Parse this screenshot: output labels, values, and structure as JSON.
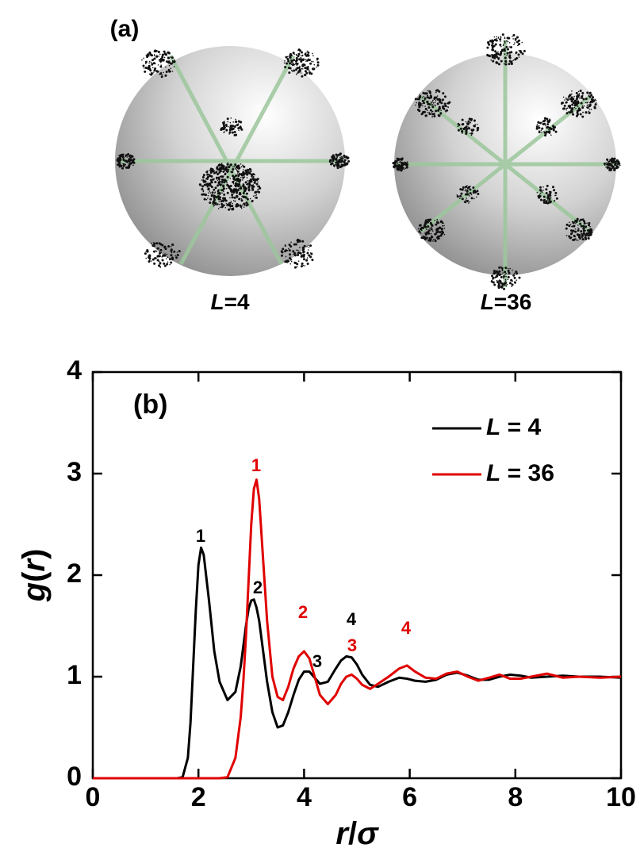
{
  "panel_a": {
    "label": "(a)",
    "captions": [
      "L=4",
      "L=36"
    ]
  },
  "chart_data": {
    "type": "line",
    "panel_label": "(b)",
    "x_label": "r/σ",
    "y_label": "g(r)",
    "x": [
      0,
      1,
      1.6,
      1.7,
      1.8,
      1.85,
      1.9,
      1.95,
      2.0,
      2.05,
      2.1,
      2.2,
      2.3,
      2.4,
      2.55,
      2.7,
      2.8,
      2.85,
      2.9,
      2.95,
      3.0,
      3.05,
      3.1,
      3.15,
      3.2,
      3.3,
      3.4,
      3.5,
      3.6,
      3.7,
      3.8,
      3.9,
      4.0,
      4.1,
      4.2,
      4.3,
      4.45,
      4.6,
      4.7,
      4.8,
      4.9,
      5.0,
      5.1,
      5.25,
      5.4,
      5.6,
      5.8,
      5.95,
      6.1,
      6.3,
      6.5,
      6.7,
      6.9,
      7.1,
      7.3,
      7.5,
      7.7,
      7.9,
      8.1,
      8.3,
      8.6,
      8.9,
      9.2,
      9.6,
      10
    ],
    "series": [
      {
        "name": "L = 4",
        "color": "#000000",
        "values": [
          0,
          0,
          0,
          0.01,
          0.2,
          0.55,
          1.1,
          1.65,
          2.1,
          2.27,
          2.2,
          1.75,
          1.25,
          0.95,
          0.77,
          0.85,
          1.1,
          1.3,
          1.5,
          1.67,
          1.75,
          1.76,
          1.68,
          1.55,
          1.35,
          0.95,
          0.65,
          0.5,
          0.52,
          0.65,
          0.82,
          0.97,
          1.05,
          1.05,
          0.99,
          0.93,
          0.95,
          1.08,
          1.16,
          1.2,
          1.19,
          1.12,
          1.02,
          0.92,
          0.9,
          0.95,
          0.99,
          0.98,
          0.96,
          0.95,
          0.97,
          1.02,
          1.04,
          1.01,
          0.97,
          0.97,
          1.0,
          1.02,
          1.01,
          0.99,
          1.0,
          1.01,
          1.0,
          1.0,
          0.99
        ]
      },
      {
        "name": "L = 36",
        "color": "#e00000",
        "values": [
          0,
          0,
          0,
          0,
          0,
          0,
          0,
          0,
          0,
          0,
          0,
          0,
          0,
          0,
          0.01,
          0.2,
          0.6,
          0.95,
          1.4,
          1.95,
          2.5,
          2.85,
          2.94,
          2.75,
          2.35,
          1.55,
          1.0,
          0.8,
          0.77,
          0.9,
          1.08,
          1.2,
          1.25,
          1.18,
          1.0,
          0.82,
          0.73,
          0.82,
          0.93,
          1.0,
          1.02,
          0.98,
          0.92,
          0.88,
          0.93,
          1.0,
          1.08,
          1.11,
          1.05,
          0.99,
          0.98,
          1.03,
          1.05,
          1.0,
          0.96,
          0.99,
          1.02,
          0.98,
          0.98,
          1.0,
          1.03,
          0.99,
          1.0,
          0.99,
          1.0
        ]
      }
    ],
    "annotations": [
      {
        "text": "1",
        "color": "#000000"
      },
      {
        "text": "2",
        "color": "#000000"
      },
      {
        "text": "3",
        "color": "#000000"
      },
      {
        "text": "4",
        "color": "#000000"
      },
      {
        "text": "1",
        "color": "#e00000"
      },
      {
        "text": "2",
        "color": "#e00000"
      },
      {
        "text": "3",
        "color": "#e00000"
      },
      {
        "text": "4",
        "color": "#e00000"
      }
    ],
    "xlim": [
      0,
      10
    ],
    "ylim": [
      0,
      4
    ],
    "xticks": [
      0,
      2,
      4,
      6,
      8,
      10
    ],
    "yticks": [
      0,
      1,
      2,
      3,
      4
    ],
    "legend": "upper right",
    "grid": false
  }
}
